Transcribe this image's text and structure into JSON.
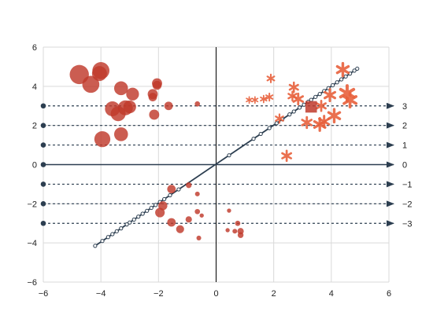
{
  "chart_data": {
    "type": "scatter",
    "title": "",
    "xlabel": "",
    "ylabel": "",
    "xlim": [
      -6,
      6
    ],
    "ylim": [
      -6,
      6
    ],
    "x_ticks": [
      -6,
      -4,
      -2,
      0,
      2,
      4,
      6
    ],
    "y_ticks": [
      -6,
      -4,
      -2,
      0,
      2,
      4,
      6
    ],
    "x_tick_labels": [
      "−6",
      "−4",
      "−2",
      "0",
      "2",
      "4",
      "6"
    ],
    "y_tick_labels": [
      "−6",
      "−4",
      "−2",
      "0",
      "2",
      "4",
      "6"
    ],
    "grid": true,
    "colors": {
      "grid": "#d9d9d9",
      "axis_line": "#000000",
      "reference": "#2c3e50",
      "circles": "#c0392b",
      "stars": "#e8603c",
      "square": "#c0392b",
      "background": "#ffffff"
    },
    "reference_lines": [
      {
        "y": 3,
        "label": "3",
        "style": "dashed"
      },
      {
        "y": 2,
        "label": "2",
        "style": "dashed"
      },
      {
        "y": 1,
        "label": "1",
        "style": "dashed"
      },
      {
        "y": 0,
        "label": "0",
        "style": "solid"
      },
      {
        "y": -1,
        "label": "−1",
        "style": "dashed"
      },
      {
        "y": -2,
        "label": "−2",
        "style": "dashed"
      },
      {
        "y": -3,
        "label": "−3",
        "style": "dashed"
      }
    ],
    "diagonal_line": {
      "from": [
        -4.2,
        -4.15
      ],
      "to": [
        4.9,
        4.9
      ],
      "markers": [
        -4.2,
        -3.95,
        -3.75,
        -3.6,
        -3.45,
        -3.3,
        -3.1,
        -3.0,
        -2.85,
        -2.7,
        -2.55,
        -2.4,
        -2.25,
        -2.1,
        -1.95,
        -1.8,
        -1.6,
        -1.3,
        0.45,
        1.3,
        1.55,
        1.85,
        2.1,
        2.3,
        2.55,
        2.7,
        2.9,
        3.05,
        3.2,
        3.3,
        3.45,
        3.6,
        3.75,
        3.9,
        4.05,
        4.2,
        4.35,
        4.5,
        4.65,
        4.8,
        4.9
      ]
    },
    "series": [
      {
        "marker": "circle",
        "points": [
          {
            "x": -4.75,
            "y": 4.6,
            "size": 3.0
          },
          {
            "x": -4.35,
            "y": 4.1,
            "size": 2.6
          },
          {
            "x": -4.0,
            "y": 4.8,
            "size": 2.6
          },
          {
            "x": -4.05,
            "y": 4.65,
            "size": 2.2
          },
          {
            "x": -3.3,
            "y": 3.9,
            "size": 2.0
          },
          {
            "x": -2.9,
            "y": 3.6,
            "size": 1.8
          },
          {
            "x": -3.6,
            "y": 2.85,
            "size": 2.2
          },
          {
            "x": -3.4,
            "y": 2.6,
            "size": 2.2
          },
          {
            "x": -3.15,
            "y": 2.9,
            "size": 2.2
          },
          {
            "x": -3.0,
            "y": 2.95,
            "size": 1.8
          },
          {
            "x": -3.95,
            "y": 1.3,
            "size": 2.4
          },
          {
            "x": -3.3,
            "y": 1.55,
            "size": 2.0
          },
          {
            "x": -2.05,
            "y": 4.15,
            "size": 1.3
          },
          {
            "x": -2.05,
            "y": 4.05,
            "size": 1.1
          },
          {
            "x": -2.2,
            "y": 3.6,
            "size": 1.3
          },
          {
            "x": -2.2,
            "y": 3.45,
            "size": 1.0
          },
          {
            "x": -2.15,
            "y": 2.55,
            "size": 1.3
          },
          {
            "x": -1.65,
            "y": 3.0,
            "size": 1.0
          },
          {
            "x": -0.65,
            "y": 3.1,
            "size": 0.4
          },
          {
            "x": -1.55,
            "y": -1.25,
            "size": 1.0
          },
          {
            "x": -1.85,
            "y": -2.1,
            "size": 1.1
          },
          {
            "x": -1.95,
            "y": -2.45,
            "size": 1.2
          },
          {
            "x": -1.55,
            "y": -2.95,
            "size": 1.0
          },
          {
            "x": -1.25,
            "y": -3.3,
            "size": 0.9
          },
          {
            "x": -0.95,
            "y": -1.05,
            "size": 0.5
          },
          {
            "x": -0.65,
            "y": -1.5,
            "size": 0.3
          },
          {
            "x": -0.65,
            "y": -2.4,
            "size": 0.4
          },
          {
            "x": -0.95,
            "y": -2.8,
            "size": 0.6
          },
          {
            "x": -0.5,
            "y": -2.6,
            "size": 0.2
          },
          {
            "x": -0.6,
            "y": -3.75,
            "size": 0.3
          },
          {
            "x": 0.45,
            "y": -2.35,
            "size": 0.2
          },
          {
            "x": 0.4,
            "y": -3.35,
            "size": 0.2
          },
          {
            "x": 0.65,
            "y": -3.4,
            "size": 0.3
          },
          {
            "x": 0.75,
            "y": -3.0,
            "size": 0.4
          },
          {
            "x": 0.85,
            "y": -3.4,
            "size": 0.6
          },
          {
            "x": 0.85,
            "y": -3.6,
            "size": 0.5
          }
        ]
      },
      {
        "marker": "star",
        "points": [
          {
            "x": 1.15,
            "y": 3.3,
            "size": 0.6
          },
          {
            "x": 1.35,
            "y": 3.3,
            "size": 0.6
          },
          {
            "x": 1.65,
            "y": 3.35,
            "size": 0.7
          },
          {
            "x": 1.85,
            "y": 3.45,
            "size": 0.8
          },
          {
            "x": 1.9,
            "y": 4.4,
            "size": 0.9
          },
          {
            "x": 2.2,
            "y": 2.35,
            "size": 1.0
          },
          {
            "x": 2.45,
            "y": 0.45,
            "size": 1.3
          },
          {
            "x": 2.65,
            "y": 3.5,
            "size": 1.1
          },
          {
            "x": 2.7,
            "y": 3.95,
            "size": 1.2
          },
          {
            "x": 2.85,
            "y": 3.35,
            "size": 1.4
          },
          {
            "x": 3.15,
            "y": 2.15,
            "size": 1.4
          },
          {
            "x": 3.6,
            "y": 2.05,
            "size": 1.7
          },
          {
            "x": 3.75,
            "y": 2.2,
            "size": 1.5
          },
          {
            "x": 3.65,
            "y": 3.0,
            "size": 1.3
          },
          {
            "x": 3.95,
            "y": 3.55,
            "size": 1.6
          },
          {
            "x": 4.1,
            "y": 2.5,
            "size": 1.8
          },
          {
            "x": 4.4,
            "y": 4.85,
            "size": 1.8
          },
          {
            "x": 4.55,
            "y": 3.65,
            "size": 2.2
          },
          {
            "x": 4.65,
            "y": 3.3,
            "size": 2.0
          }
        ]
      },
      {
        "marker": "square",
        "points": [
          {
            "x": 3.3,
            "y": 2.95,
            "size": 1.8
          }
        ]
      }
    ]
  }
}
